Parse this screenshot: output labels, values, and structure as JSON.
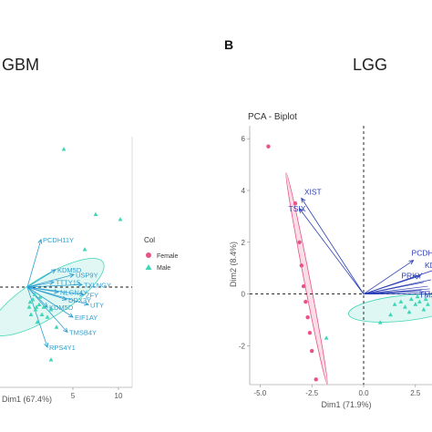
{
  "figure": {
    "panel_b_letter": "B"
  },
  "chart_data": [
    {
      "panel": "GBM",
      "type": "scatter",
      "title": "GBM",
      "xlabel": "Dim1 (67.4%)",
      "ylabel": "",
      "x_ticks": [
        5,
        10
      ],
      "xlim": [
        -3,
        11.5
      ],
      "ylim": [
        -4,
        6
      ],
      "grid": false,
      "legend": {
        "title": "Col",
        "placement": "right",
        "entries": [
          {
            "label": "Female",
            "color": "#e8528a",
            "marker": "circle"
          },
          {
            "label": "Male",
            "color": "#3dd6b6",
            "marker": "triangle"
          }
        ]
      },
      "colors": {
        "male": "#3dd6b6",
        "female": "#e8528a",
        "arrow": "#2d9fd0",
        "ellipse_fill": "#c8f1ea"
      },
      "series": [
        {
          "name": "Male",
          "points": [
            {
              "x": 4.0,
              "y": 5.5
            },
            {
              "x": 7.5,
              "y": 2.9
            },
            {
              "x": 10.2,
              "y": 2.7
            },
            {
              "x": 6.3,
              "y": 1.5
            },
            {
              "x": 2.6,
              "y": -2.9
            },
            {
              "x": 1.0,
              "y": -0.8
            },
            {
              "x": 0.3,
              "y": -0.6
            },
            {
              "x": 0.6,
              "y": -0.5
            },
            {
              "x": 0.9,
              "y": -0.9
            },
            {
              "x": 1.3,
              "y": -0.7
            },
            {
              "x": 1.8,
              "y": -0.8
            },
            {
              "x": 2.2,
              "y": -1.2
            },
            {
              "x": 0.4,
              "y": -1.1
            },
            {
              "x": 1.6,
              "y": -1.1
            },
            {
              "x": 1.1,
              "y": -1.4
            },
            {
              "x": 0.2,
              "y": -0.8
            },
            {
              "x": 2.6,
              "y": -0.9
            },
            {
              "x": 3.2,
              "y": -1.6
            },
            {
              "x": 0.8,
              "y": -0.3
            },
            {
              "x": 1.4,
              "y": -0.4
            }
          ]
        }
      ],
      "variables": [
        {
          "label": "PCDH11Y",
          "x": 1.5,
          "y": 1.9
        },
        {
          "label": "KDM5D",
          "x": 3.1,
          "y": 0.7
        },
        {
          "label": "USP9Y",
          "x": 5.1,
          "y": 0.5
        },
        {
          "label": "TTTY15",
          "x": 2.9,
          "y": 0.2
        },
        {
          "label": "TXLNGY",
          "x": 6.0,
          "y": 0.1
        },
        {
          "label": "NLGN4Y",
          "x": 3.4,
          "y": -0.2
        },
        {
          "label": "ZFY",
          "x": 6.2,
          "y": -0.3
        },
        {
          "label": "DDX3Y",
          "x": 4.3,
          "y": -0.5
        },
        {
          "label": "UTY",
          "x": 6.7,
          "y": -0.7
        },
        {
          "label": "KDM5D",
          "x": 2.2,
          "y": -0.8
        },
        {
          "label": "EIF1AY",
          "x": 5.0,
          "y": -1.2
        },
        {
          "label": "TMSB4Y",
          "x": 4.4,
          "y": -1.8
        },
        {
          "label": "RPS4Y1",
          "x": 2.2,
          "y": -2.4
        }
      ]
    },
    {
      "panel": "LGG",
      "type": "scatter",
      "title": "LGG",
      "subtitle": "PCA - Biplot",
      "xlabel": "Dim1 (71.9%)",
      "ylabel": "Dim2 (8.4%)",
      "x_ticks": [
        "-5.0",
        "-2.5",
        "0.0",
        "2.5"
      ],
      "y_ticks": [
        "-2",
        "0",
        "2",
        "4",
        "6"
      ],
      "xlim": [
        -5.5,
        3.3
      ],
      "ylim": [
        -3.5,
        6.5
      ],
      "grid": false,
      "colors": {
        "male": "#3dd6b6",
        "female": "#e8528a",
        "arrow": "#2c3fb5",
        "ellipse_fill": "#c8f1ea"
      },
      "series": [
        {
          "name": "Female",
          "points": [
            {
              "x": -4.6,
              "y": 5.7
            },
            {
              "x": -3.3,
              "y": 3.5
            },
            {
              "x": -2.9,
              "y": 0.3
            },
            {
              "x": -2.8,
              "y": -0.3
            },
            {
              "x": -2.7,
              "y": -0.9
            },
            {
              "x": -2.6,
              "y": -1.5
            },
            {
              "x": -2.5,
              "y": -2.2
            },
            {
              "x": -2.3,
              "y": -3.3
            },
            {
              "x": -3.0,
              "y": 1.1
            },
            {
              "x": -3.1,
              "y": 2.0
            }
          ]
        },
        {
          "name": "Male",
          "points": [
            {
              "x": -1.8,
              "y": -1.7
            },
            {
              "x": 1.5,
              "y": -0.4
            },
            {
              "x": 1.8,
              "y": -0.3
            },
            {
              "x": 2.0,
              "y": -0.5
            },
            {
              "x": 2.3,
              "y": -0.2
            },
            {
              "x": 2.5,
              "y": -0.4
            },
            {
              "x": 2.7,
              "y": -0.3
            },
            {
              "x": 2.9,
              "y": -0.6
            },
            {
              "x": 3.1,
              "y": -0.4
            },
            {
              "x": 2.2,
              "y": -0.7
            },
            {
              "x": 0.8,
              "y": -1.1
            },
            {
              "x": 1.3,
              "y": -0.8
            },
            {
              "x": 2.6,
              "y": -0.1
            },
            {
              "x": 3.0,
              "y": -0.2
            }
          ]
        }
      ],
      "variables": [
        {
          "label": "XIST",
          "x": -3.0,
          "y": 3.7
        },
        {
          "label": "TSIX",
          "x": -3.1,
          "y": 3.3
        },
        {
          "label": "PCDH11Y",
          "x": 2.4,
          "y": 1.3
        },
        {
          "label": "PRKY",
          "x": 2.7,
          "y": 0.7
        },
        {
          "label": "KD",
          "x": 3.3,
          "y": 0.9
        },
        {
          "label": "TMS",
          "x": 3.3,
          "y": 0.0
        }
      ]
    }
  ]
}
